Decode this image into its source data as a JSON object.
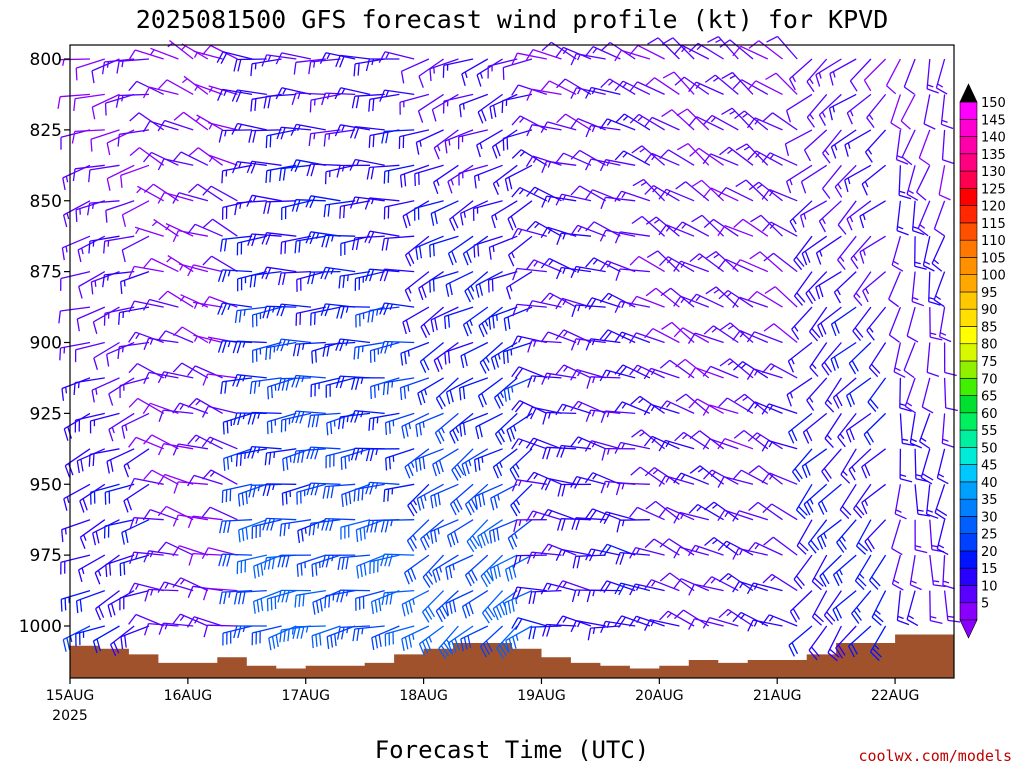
{
  "chart_data": {
    "type": "wind-barb-profile",
    "title": "2025081500 GFS forecast wind profile (kt) for KPVD",
    "xlabel": "Forecast Time (UTC)",
    "ylabel": "",
    "x_ticks": [
      "15AUG",
      "16AUG",
      "17AUG",
      "18AUG",
      "19AUG",
      "20AUG",
      "21AUG",
      "22AUG"
    ],
    "x_tick_sub": [
      "2025",
      "",
      "",
      "",
      "",
      "",
      "",
      ""
    ],
    "xlim_days": [
      0,
      7.5
    ],
    "y_ticks": [
      800,
      825,
      850,
      875,
      900,
      925,
      950,
      975,
      1000
    ],
    "ylim_hpa": [
      1020,
      795
    ],
    "levels_hpa": [
      1000,
      987.5,
      975,
      962.5,
      950,
      937.5,
      925,
      912.5,
      900,
      887.5,
      875,
      862.5,
      850,
      837.5,
      825,
      812.5,
      800
    ],
    "time_step_hours": 3,
    "colorbar": {
      "label_values": [
        5,
        10,
        15,
        20,
        25,
        30,
        35,
        40,
        45,
        50,
        55,
        60,
        65,
        70,
        75,
        80,
        85,
        90,
        95,
        100,
        105,
        110,
        115,
        120,
        125,
        130,
        135,
        140,
        145,
        150
      ],
      "colors": [
        "#8a00ff",
        "#5a00ff",
        "#2800ff",
        "#0014ff",
        "#0040ff",
        "#0060ff",
        "#0080ff",
        "#00a0ff",
        "#00c8ff",
        "#00ecd8",
        "#00f0a0",
        "#00f060",
        "#00e030",
        "#40f000",
        "#90f000",
        "#d8f800",
        "#ffff00",
        "#ffe000",
        "#ffc800",
        "#ffa800",
        "#ff9000",
        "#ff7800",
        "#ff5000",
        "#ff2800",
        "#ff0000",
        "#ff0050",
        "#ff0080",
        "#ff00a8",
        "#ff00d0",
        "#ff00ff"
      ],
      "top_cap_color": "#000000",
      "bottom_cap_color": "#8a00ff"
    },
    "terrain_color": "#a0522d",
    "surface_pressure_profile": [
      [
        0,
        1007
      ],
      [
        0.25,
        1008
      ],
      [
        0.5,
        1010
      ],
      [
        0.75,
        1013
      ],
      [
        1.0,
        1013
      ],
      [
        1.25,
        1011
      ],
      [
        1.5,
        1014
      ],
      [
        1.75,
        1015
      ],
      [
        2.0,
        1014
      ],
      [
        2.25,
        1014
      ],
      [
        2.5,
        1013
      ],
      [
        2.75,
        1010
      ],
      [
        3.0,
        1008
      ],
      [
        3.25,
        1006
      ],
      [
        3.5,
        1006
      ],
      [
        3.75,
        1008
      ],
      [
        4.0,
        1011
      ],
      [
        4.25,
        1013
      ],
      [
        4.5,
        1014
      ],
      [
        4.75,
        1015
      ],
      [
        5.0,
        1014
      ],
      [
        5.25,
        1012
      ],
      [
        5.5,
        1013
      ],
      [
        5.75,
        1012
      ],
      [
        6.0,
        1012
      ],
      [
        6.25,
        1010
      ],
      [
        6.5,
        1006
      ],
      [
        6.75,
        1006
      ],
      [
        7.0,
        1003
      ],
      [
        7.25,
        1003
      ],
      [
        7.5,
        1008
      ]
    ],
    "wind_regimes": [
      {
        "t0": 0.0,
        "t1": 0.75,
        "dir": 250,
        "spd": [
          22,
          14,
          10
        ]
      },
      {
        "t0": 0.75,
        "t1": 1.5,
        "dir": 290,
        "spd": [
          12,
          10,
          8
        ]
      },
      {
        "t0": 1.5,
        "t1": 3.0,
        "dir": 265,
        "spd": [
          30,
          24,
          15
        ]
      },
      {
        "t0": 3.0,
        "t1": 4.0,
        "dir": 240,
        "spd": [
          32,
          22,
          14
        ]
      },
      {
        "t0": 4.0,
        "t1": 5.0,
        "dir": 285,
        "spd": [
          18,
          15,
          12
        ]
      },
      {
        "t0": 5.0,
        "t1": 6.25,
        "dir": 300,
        "spd": [
          14,
          12,
          12
        ]
      },
      {
        "t0": 6.25,
        "t1": 7.0,
        "dir": 225,
        "spd": [
          22,
          18,
          12
        ]
      },
      {
        "t0": 7.0,
        "t1": 7.5,
        "dir": 190,
        "spd": [
          16,
          14,
          12
        ]
      }
    ]
  },
  "credit": "coolwx.com/models"
}
